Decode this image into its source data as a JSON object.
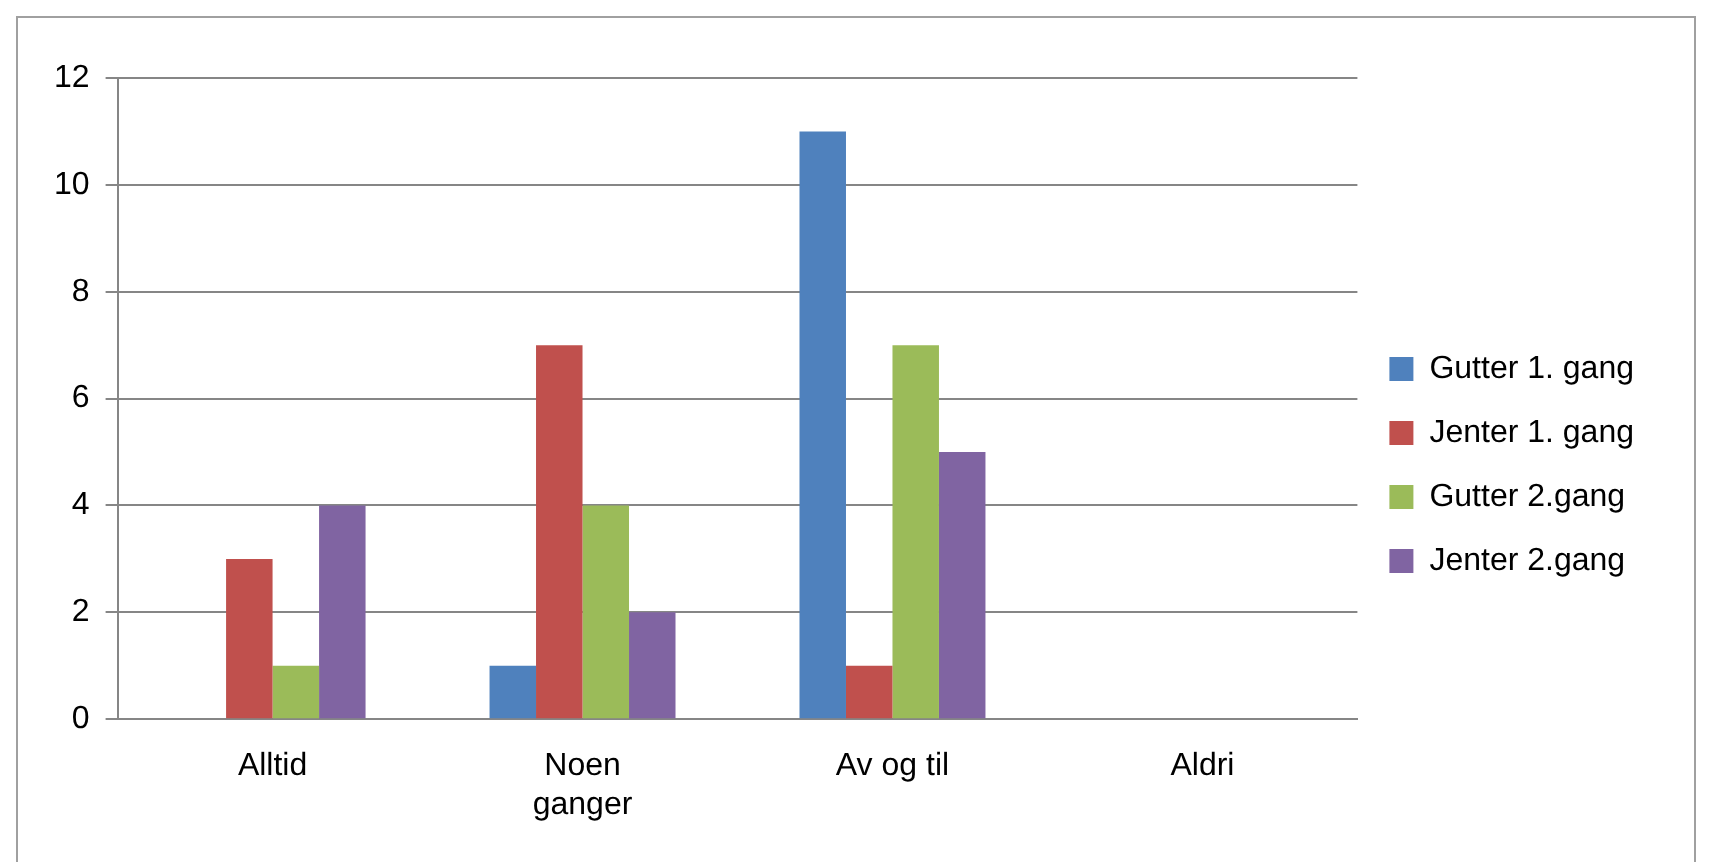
{
  "chart_data": {
    "type": "bar",
    "categories": [
      "Alltid",
      "Noen ganger",
      "Av og til",
      "Aldri"
    ],
    "series": [
      {
        "name": "Gutter 1. gang",
        "color": "#4f81bd",
        "values": [
          0,
          1,
          11,
          0
        ]
      },
      {
        "name": "Jenter 1. gang",
        "color": "#c0504d",
        "values": [
          3,
          7,
          1,
          0
        ]
      },
      {
        "name": "Gutter 2.gang",
        "color": "#9bbb59",
        "values": [
          1,
          4,
          7,
          0
        ]
      },
      {
        "name": "Jenter 2.gang",
        "color": "#8064a2",
        "values": [
          4,
          2,
          5,
          0
        ]
      }
    ],
    "ylim": [
      0,
      12
    ],
    "yticks": [
      0,
      2,
      4,
      6,
      8,
      10,
      12
    ],
    "grid": "y",
    "legend": "right"
  }
}
